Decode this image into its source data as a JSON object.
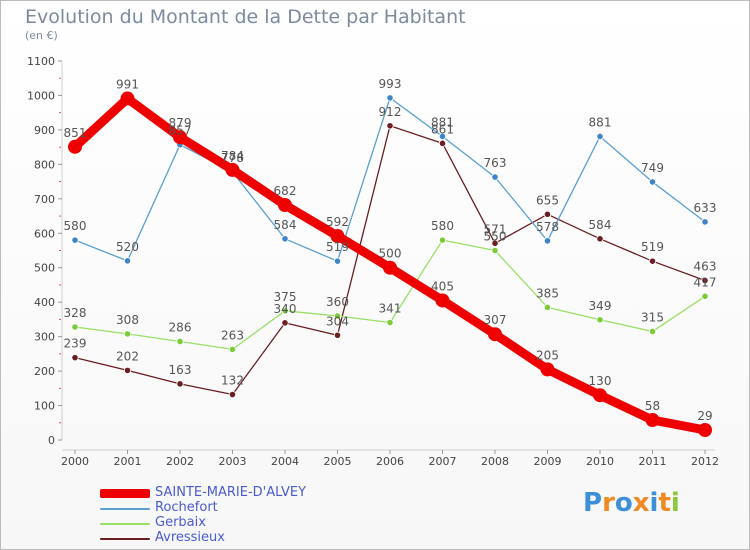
{
  "title": "Evolution du Montant de la Dette par Habitant",
  "unit": "(en €)",
  "logo": "Proxiti",
  "colors": {
    "main": "#ee0000",
    "rochefort": "#5a9fd0",
    "gerbaix": "#99e066",
    "avressieux": "#6b1e22",
    "rochefort_dot": "#3d85c6",
    "gerbaix_dot": "#7ccc3a",
    "avressieux_dot": "#6b1e22"
  },
  "chart_data": {
    "type": "line",
    "x": [
      "2000",
      "2001",
      "2002",
      "2003",
      "2004",
      "2005",
      "2006",
      "2007",
      "2008",
      "2009",
      "2010",
      "2011",
      "2012"
    ],
    "ylim": [
      0,
      1100
    ],
    "yticks": [
      0,
      100,
      200,
      300,
      400,
      500,
      600,
      700,
      800,
      900,
      1000,
      1100
    ],
    "grid": false,
    "legend_position": "bottom-left",
    "series": [
      {
        "name": "SAINTE-MARIE-D'ALVEY",
        "key": "main",
        "values": [
          851,
          991,
          879,
          784,
          682,
          592,
          500,
          405,
          307,
          205,
          130,
          58,
          29
        ]
      },
      {
        "name": "Rochefort",
        "key": "rochefort",
        "values": [
          580,
          520,
          857,
          778,
          584,
          519,
          993,
          881,
          763,
          578,
          881,
          749,
          633
        ]
      },
      {
        "name": "Gerbaix",
        "key": "gerbaix",
        "values": [
          328,
          308,
          286,
          263,
          375,
          360,
          341,
          580,
          550,
          385,
          349,
          315,
          417
        ]
      },
      {
        "name": "Avressieux",
        "key": "avressieux",
        "values": [
          239,
          202,
          163,
          132,
          340,
          304,
          912,
          861,
          571,
          655,
          584,
          519,
          463
        ]
      }
    ]
  }
}
